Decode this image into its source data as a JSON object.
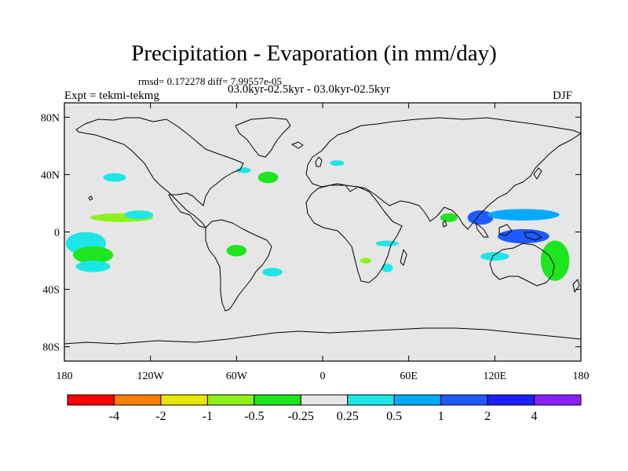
{
  "title": "Precipitation - Evaporation (in mm/day)",
  "stats": "rmsd= 0.172278 diff= 7.99557e-05",
  "comparison": "03.0kyr-02.5kyr - 03.0kyr-02.5kyr",
  "experiment": "Expt = tekmi-tekmg",
  "season": "DJF",
  "map": {
    "lat_labels": [
      "80N",
      "40N",
      "0",
      "40S",
      "80S"
    ],
    "lon_labels": [
      "180",
      "120W",
      "60W",
      "0",
      "60E",
      "120E",
      "180"
    ],
    "lat_values": [
      80,
      40,
      0,
      -40,
      -80
    ],
    "lon_values": [
      -180,
      -120,
      -60,
      0,
      60,
      120,
      180
    ],
    "lat_range": [
      -90,
      90
    ],
    "lon_range": [
      -180,
      180
    ],
    "ocean_color": "#e6e6e6",
    "coast_color": "#000000"
  },
  "colorbar": {
    "colors": [
      "#ff0000",
      "#ff7f00",
      "#e6e600",
      "#8cf21a",
      "#1ee61e",
      "#e6e6e6",
      "#1ee6e6",
      "#00aaff",
      "#1e5aff",
      "#1e1eff",
      "#8c1eff"
    ],
    "labels": [
      "-4",
      "-2",
      "-1",
      "-0.5",
      "-0.25",
      "0.25",
      "0.5",
      "1",
      "2",
      "4"
    ]
  },
  "anomalies": [
    {
      "color": "#1ee6e6",
      "lon": -165,
      "lat": -8,
      "rlon": 14,
      "rlat": 8
    },
    {
      "color": "#1ee61e",
      "lon": -160,
      "lat": -16,
      "rlon": 14,
      "rlat": 6
    },
    {
      "color": "#1ee6e6",
      "lon": -160,
      "lat": -24,
      "rlon": 12,
      "rlat": 4
    },
    {
      "color": "#8cf21a",
      "lon": -140,
      "lat": 10,
      "rlon": 22,
      "rlat": 3
    },
    {
      "color": "#1ee6e6",
      "lon": -128,
      "lat": 12,
      "rlon": 10,
      "rlat": 3
    },
    {
      "color": "#1ee6e6",
      "lon": -145,
      "lat": 38,
      "rlon": 8,
      "rlat": 3
    },
    {
      "color": "#1ee61e",
      "lon": -60,
      "lat": -13,
      "rlon": 7,
      "rlat": 4
    },
    {
      "color": "#1ee6e6",
      "lon": -35,
      "lat": -28,
      "rlon": 7,
      "rlat": 3
    },
    {
      "color": "#1ee61e",
      "lon": -38,
      "lat": 38,
      "rlon": 7,
      "rlat": 4
    },
    {
      "color": "#1ee6e6",
      "lon": -55,
      "lat": 43,
      "rlon": 5,
      "rlat": 2
    },
    {
      "color": "#1ee6e6",
      "lon": 10,
      "lat": 48,
      "rlon": 5,
      "rlat": 2
    },
    {
      "color": "#1ee6e6",
      "lon": 45,
      "lat": -8,
      "rlon": 8,
      "rlat": 2
    },
    {
      "color": "#1ee6e6",
      "lon": 45,
      "lat": -25,
      "rlon": 4,
      "rlat": 3
    },
    {
      "color": "#8cf21a",
      "lon": 30,
      "lat": -20,
      "rlon": 4,
      "rlat": 2
    },
    {
      "color": "#1ee61e",
      "lon": 88,
      "lat": 10,
      "rlon": 6,
      "rlat": 3
    },
    {
      "color": "#1e5aff",
      "lon": 110,
      "lat": 10,
      "rlon": 9,
      "rlat": 5
    },
    {
      "color": "#00aaff",
      "lon": 140,
      "lat": 12,
      "rlon": 25,
      "rlat": 4
    },
    {
      "color": "#1ee6e6",
      "lon": 120,
      "lat": -17,
      "rlon": 10,
      "rlat": 3
    },
    {
      "color": "#1ee61e",
      "lon": 162,
      "lat": -20,
      "rlon": 10,
      "rlat": 14
    },
    {
      "color": "#1e5aff",
      "lon": 140,
      "lat": -3,
      "rlon": 18,
      "rlat": 5
    }
  ]
}
